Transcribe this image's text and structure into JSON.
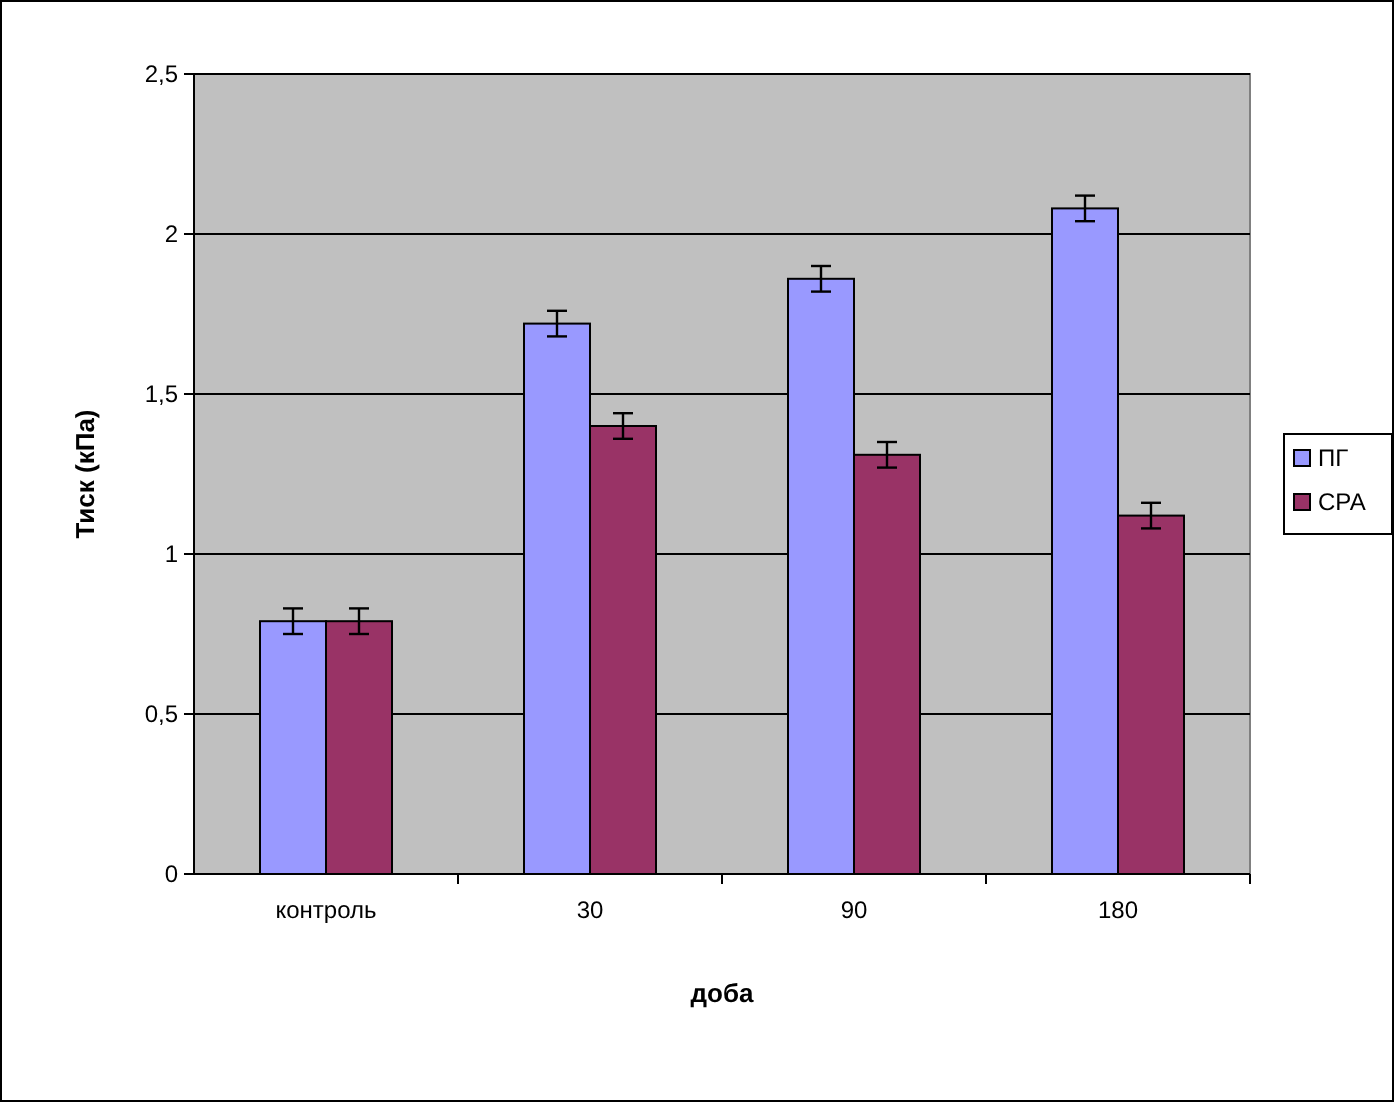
{
  "chart_data": {
    "type": "bar",
    "xlabel": "доба",
    "ylabel": "Тиск (кПа)",
    "categories": [
      "контроль",
      "30",
      "90",
      "180"
    ],
    "series": [
      {
        "name": "ПГ",
        "color": "#9999ff",
        "values": [
          0.79,
          1.72,
          1.86,
          2.08
        ],
        "errors": [
          0.04,
          0.04,
          0.04,
          0.04
        ]
      },
      {
        "name": "СРА",
        "color": "#993366",
        "values": [
          0.79,
          1.4,
          1.31,
          1.12
        ],
        "errors": [
          0.04,
          0.04,
          0.04,
          0.04
        ]
      }
    ],
    "ylim": [
      0,
      2.5
    ],
    "yticks": [
      0,
      {
        "value": 0.5,
        "label": "0,5"
      },
      1,
      {
        "value": 1.5,
        "label": "1,5"
      },
      2,
      {
        "value": 2.5,
        "label": "2,5"
      }
    ],
    "grid": "y",
    "legend": "right"
  }
}
